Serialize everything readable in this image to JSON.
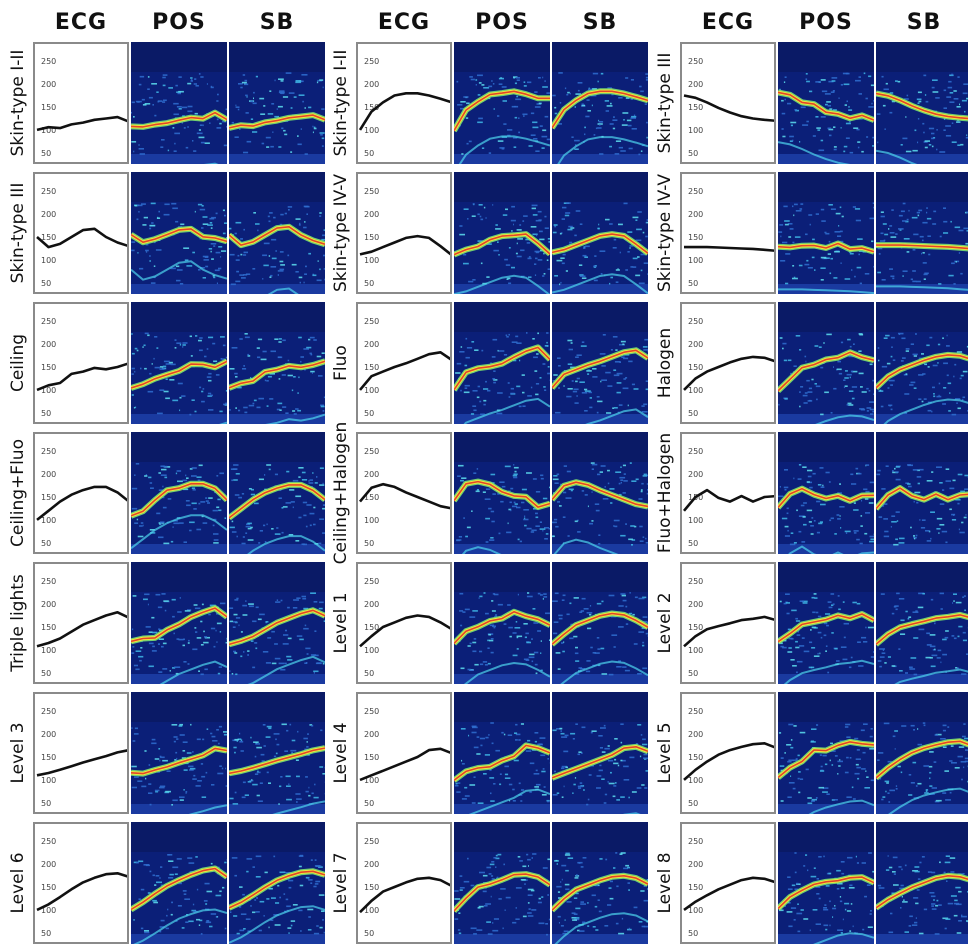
{
  "column_headers": [
    "ECG",
    "POS",
    "SB"
  ],
  "tick_labels": [
    "250",
    "200",
    "150",
    "100",
    "50"
  ],
  "chart_data": {
    "type": "heatmap",
    "yticks": [
      250,
      200,
      150,
      100,
      50
    ],
    "ylim": [
      30,
      270
    ],
    "groups": [
      {
        "columns": [
          "ECG",
          "POS",
          "SB"
        ],
        "rows": [
          {
            "label": "Skin-type I-II",
            "ecg": [
              100,
              106,
              104,
              112,
              116,
              122,
              125,
              128,
              118
            ]
          },
          {
            "label": "Skin-type III",
            "ecg": [
              150,
              128,
              135,
              150,
              165,
              168,
              150,
              138,
              130
            ]
          },
          {
            "label": "Ceiling",
            "ecg": [
              100,
              110,
              115,
              135,
              140,
              148,
              145,
              150,
              158
            ]
          },
          {
            "label": "Ceiling+Fluo",
            "ecg": [
              100,
              120,
              140,
              155,
              165,
              172,
              172,
              160,
              140
            ]
          },
          {
            "label": "Triple lights",
            "ecg": [
              108,
              115,
              125,
              140,
              155,
              165,
              175,
              182,
              170
            ]
          },
          {
            "label": "Level 3",
            "ecg": [
              110,
              115,
              122,
              130,
              138,
              145,
              152,
              160,
              165
            ]
          },
          {
            "label": "Level 6",
            "ecg": [
              100,
              112,
              128,
              145,
              160,
              170,
              178,
              180,
              172
            ]
          }
        ]
      },
      {
        "columns": [
          "ECG",
          "POS",
          "SB"
        ],
        "rows": [
          {
            "label": "Skin-type I-II",
            "ecg": [
              100,
              140,
              160,
              175,
              180,
              180,
              175,
              168,
              160
            ]
          },
          {
            "label": "Skin-type IV-V",
            "ecg": [
              112,
              118,
              128,
              138,
              148,
              152,
              148,
              130,
              110
            ]
          },
          {
            "label": "Fluo",
            "ecg": [
              100,
              130,
              140,
              150,
              158,
              168,
              178,
              182,
              165
            ]
          },
          {
            "label": "Ceiling+Halogen",
            "ecg": [
              140,
              170,
              178,
              172,
              160,
              150,
              140,
              130,
              125
            ]
          },
          {
            "label": "Level 1",
            "ecg": [
              108,
              130,
              150,
              160,
              170,
              175,
              172,
              160,
              145
            ]
          },
          {
            "label": "Level 4",
            "ecg": [
              100,
              110,
              120,
              130,
              140,
              150,
              165,
              168,
              158
            ]
          },
          {
            "label": "Level 7",
            "ecg": [
              95,
              120,
              140,
              150,
              160,
              168,
              170,
              165,
              152
            ]
          }
        ]
      },
      {
        "columns": [
          "ECG",
          "POS",
          "SB"
        ],
        "rows": [
          {
            "label": "Skin-type III",
            "ecg": [
              175,
              170,
              160,
              148,
              138,
              130,
              125,
              122,
              120
            ]
          },
          {
            "label": "Skin-type IV-V",
            "ecg": [
              128,
              128,
              128,
              127,
              126,
              125,
              124,
              122,
              120
            ]
          },
          {
            "label": "Halogen",
            "ecg": [
              100,
              125,
              140,
              150,
              160,
              168,
              172,
              170,
              162
            ]
          },
          {
            "label": "Fluo+Halogen",
            "ecg": [
              120,
              150,
              165,
              148,
              140,
              152,
              140,
              150,
              152
            ]
          },
          {
            "label": "Level 2",
            "ecg": [
              108,
              130,
              145,
              152,
              158,
              165,
              168,
              172,
              165
            ]
          },
          {
            "label": "Level 5",
            "ecg": [
              100,
              122,
              140,
              155,
              165,
              172,
              178,
              180,
              170
            ]
          },
          {
            "label": "Level 8",
            "ecg": [
              100,
              118,
              132,
              145,
              155,
              165,
              170,
              168,
              160
            ]
          }
        ]
      }
    ]
  }
}
